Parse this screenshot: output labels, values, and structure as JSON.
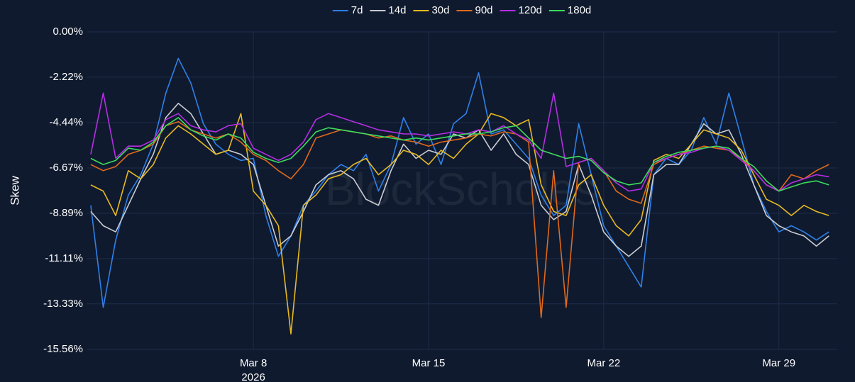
{
  "chart_data": {
    "type": "line",
    "y_label": "Skew",
    "watermark": "BlockScholes",
    "x": [
      "2026-03-01T12:00",
      "2026-03-02T00:00",
      "2026-03-02T12:00",
      "2026-03-03T00:00",
      "2026-03-03T12:00",
      "2026-03-04T00:00",
      "2026-03-04T12:00",
      "2026-03-05T00:00",
      "2026-03-05T12:00",
      "2026-03-06T00:00",
      "2026-03-06T12:00",
      "2026-03-07T00:00",
      "2026-03-07T12:00",
      "2026-03-08T00:00",
      "2026-03-08T12:00",
      "2026-03-09T00:00",
      "2026-03-09T12:00",
      "2026-03-10T00:00",
      "2026-03-10T12:00",
      "2026-03-11T00:00",
      "2026-03-11T12:00",
      "2026-03-12T00:00",
      "2026-03-12T12:00",
      "2026-03-13T00:00",
      "2026-03-13T12:00",
      "2026-03-14T00:00",
      "2026-03-14T12:00",
      "2026-03-15T00:00",
      "2026-03-15T12:00",
      "2026-03-16T00:00",
      "2026-03-16T12:00",
      "2026-03-17T00:00",
      "2026-03-17T12:00",
      "2026-03-18T00:00",
      "2026-03-18T12:00",
      "2026-03-19T00:00",
      "2026-03-19T12:00",
      "2026-03-20T00:00",
      "2026-03-20T12:00",
      "2026-03-21T00:00",
      "2026-03-21T12:00",
      "2026-03-22T00:00",
      "2026-03-22T12:00",
      "2026-03-23T00:00",
      "2026-03-23T12:00",
      "2026-03-24T00:00",
      "2026-03-24T12:00",
      "2026-03-25T00:00",
      "2026-03-25T12:00",
      "2026-03-26T00:00",
      "2026-03-26T12:00",
      "2026-03-27T00:00",
      "2026-03-27T12:00",
      "2026-03-28T00:00",
      "2026-03-28T12:00",
      "2026-03-29T00:00",
      "2026-03-29T12:00",
      "2026-03-30T00:00",
      "2026-03-30T12:00",
      "2026-03-31T00:00"
    ],
    "series": [
      {
        "name": "7d",
        "color": "#2f80e8",
        "values": [
          -8.5,
          -13.5,
          -10.2,
          -8.0,
          -7.0,
          -5.5,
          -3.0,
          -1.3,
          -2.5,
          -4.5,
          -5.5,
          -6.0,
          -6.3,
          -6.2,
          -9.0,
          -11.0,
          -10.0,
          -8.5,
          -7.8,
          -7.0,
          -6.5,
          -6.8,
          -6.0,
          -7.8,
          -6.5,
          -4.2,
          -5.5,
          -5.0,
          -6.5,
          -4.5,
          -4.0,
          -2.0,
          -5.0,
          -4.8,
          -5.5,
          -6.2,
          -8.0,
          -9.0,
          -8.5,
          -4.5,
          -7.0,
          -9.5,
          -10.5,
          -11.5,
          -12.5,
          -7.0,
          -6.2,
          -6.5,
          -5.8,
          -4.2,
          -5.5,
          -3.0,
          -5.2,
          -7.5,
          -8.8,
          -9.8,
          -9.5,
          -9.8,
          -10.2,
          -9.8
        ]
      },
      {
        "name": "14d",
        "color": "#c9ccd2",
        "values": [
          -8.8,
          -9.5,
          -9.8,
          -8.5,
          -7.2,
          -6.0,
          -4.2,
          -3.5,
          -4.0,
          -5.0,
          -6.0,
          -5.8,
          -6.0,
          -6.5,
          -8.5,
          -10.5,
          -10.0,
          -8.8,
          -7.5,
          -7.0,
          -6.8,
          -7.2,
          -8.2,
          -8.5,
          -6.8,
          -5.5,
          -6.2,
          -5.8,
          -6.0,
          -5.0,
          -5.2,
          -4.8,
          -5.8,
          -5.0,
          -6.0,
          -6.5,
          -8.5,
          -9.2,
          -8.8,
          -6.5,
          -8.0,
          -9.8,
          -10.5,
          -11.0,
          -10.5,
          -7.0,
          -6.5,
          -6.5,
          -5.5,
          -4.5,
          -5.0,
          -4.8,
          -6.0,
          -7.5,
          -9.0,
          -9.5,
          -9.8,
          -10.0,
          -10.5,
          -10.0
        ]
      },
      {
        "name": "30d",
        "color": "#e8b923",
        "values": [
          -7.5,
          -7.8,
          -9.0,
          -6.8,
          -7.2,
          -6.5,
          -5.2,
          -4.6,
          -5.0,
          -5.5,
          -6.0,
          -5.8,
          -4.0,
          -7.8,
          -8.5,
          -9.5,
          -14.8,
          -8.5,
          -8.0,
          -7.2,
          -7.0,
          -6.5,
          -6.2,
          -7.0,
          -6.5,
          -5.8,
          -6.0,
          -6.5,
          -5.8,
          -6.2,
          -5.5,
          -5.0,
          -4.0,
          -4.2,
          -4.6,
          -4.3,
          -7.5,
          -8.8,
          -9.0,
          -7.5,
          -7.0,
          -8.5,
          -9.5,
          -10.0,
          -9.2,
          -6.3,
          -6.0,
          -6.2,
          -5.5,
          -4.8,
          -5.0,
          -5.2,
          -5.8,
          -7.0,
          -8.2,
          -8.5,
          -9.0,
          -8.5,
          -8.8,
          -9.0
        ]
      },
      {
        "name": "90d",
        "color": "#e0691b",
        "values": [
          -6.5,
          -6.8,
          -6.6,
          -6.0,
          -5.8,
          -5.5,
          -4.6,
          -4.4,
          -4.8,
          -5.0,
          -5.2,
          -5.0,
          -5.4,
          -6.0,
          -6.3,
          -6.8,
          -7.2,
          -6.5,
          -5.2,
          -5.0,
          -4.8,
          -4.9,
          -5.0,
          -5.2,
          -5.1,
          -5.3,
          -5.4,
          -5.6,
          -5.4,
          -5.3,
          -5.2,
          -5.0,
          -5.1,
          -4.9,
          -5.0,
          -5.4,
          -14.0,
          -6.8,
          -13.5,
          -6.4,
          -6.2,
          -6.8,
          -7.8,
          -8.2,
          -8.4,
          -6.5,
          -6.2,
          -6.0,
          -5.8,
          -5.6,
          -5.7,
          -5.8,
          -6.2,
          -6.8,
          -7.5,
          -7.8,
          -7.0,
          -7.2,
          -6.8,
          -6.5
        ]
      },
      {
        "name": "120d",
        "color": "#b52ee3",
        "values": [
          -6.0,
          -3.0,
          -6.2,
          -5.6,
          -5.6,
          -5.3,
          -4.3,
          -4.0,
          -4.6,
          -4.8,
          -4.9,
          -4.6,
          -4.5,
          -5.7,
          -6.0,
          -6.3,
          -6.0,
          -5.4,
          -4.3,
          -4.0,
          -4.2,
          -4.4,
          -4.6,
          -4.8,
          -4.9,
          -5.0,
          -5.0,
          -5.1,
          -5.0,
          -4.9,
          -5.0,
          -4.8,
          -4.9,
          -4.6,
          -5.0,
          -5.3,
          -6.2,
          -3.0,
          -6.6,
          -6.4,
          -6.2,
          -6.8,
          -7.4,
          -7.8,
          -7.7,
          -6.4,
          -6.2,
          -6.0,
          -5.9,
          -5.7,
          -5.6,
          -5.8,
          -6.3,
          -6.8,
          -7.5,
          -7.8,
          -7.4,
          -7.2,
          -7.0,
          -7.1
        ]
      },
      {
        "name": "180d",
        "color": "#3ddc5c",
        "values": [
          -6.2,
          -6.5,
          -6.3,
          -5.7,
          -5.8,
          -5.4,
          -4.6,
          -4.2,
          -4.8,
          -5.1,
          -5.3,
          -5.0,
          -5.2,
          -5.9,
          -6.2,
          -6.4,
          -6.2,
          -5.6,
          -4.9,
          -4.7,
          -4.8,
          -4.9,
          -5.0,
          -5.1,
          -5.2,
          -5.3,
          -5.2,
          -5.3,
          -5.2,
          -5.1,
          -5.0,
          -5.0,
          -4.9,
          -4.7,
          -4.6,
          -5.2,
          -5.8,
          -6.0,
          -6.2,
          -6.1,
          -6.3,
          -6.9,
          -7.3,
          -7.5,
          -7.4,
          -6.4,
          -6.1,
          -5.9,
          -5.8,
          -5.7,
          -5.6,
          -5.7,
          -6.2,
          -6.6,
          -7.3,
          -7.8,
          -7.6,
          -7.4,
          -7.3,
          -7.5
        ]
      }
    ],
    "xlim": [
      "2026-03-01T08:00",
      "2026-03-31T08:00"
    ],
    "xticks": [
      {
        "value": "2026-03-08T00:00",
        "label": "Mar 8"
      },
      {
        "value": "2026-03-15T00:00",
        "label": "Mar 15"
      },
      {
        "value": "2026-03-22T00:00",
        "label": "Mar 22"
      },
      {
        "value": "2026-03-29T00:00",
        "label": "Mar 29"
      }
    ],
    "xtick_year": "2026",
    "ylim": [
      -15.56,
      0
    ],
    "yticks": [
      {
        "value": 0,
        "label": "0.00%"
      },
      {
        "value": -2.22,
        "label": "-2.22%"
      },
      {
        "value": -4.44,
        "label": "-4.44%"
      },
      {
        "value": -6.67,
        "label": "-6.67%"
      },
      {
        "value": -8.89,
        "label": "-8.89%"
      },
      {
        "value": -11.11,
        "label": "-11.11%"
      },
      {
        "value": -13.33,
        "label": "-13.33%"
      },
      {
        "value": -15.56,
        "label": "-15.56%"
      }
    ],
    "grid": true,
    "legend": "top"
  }
}
